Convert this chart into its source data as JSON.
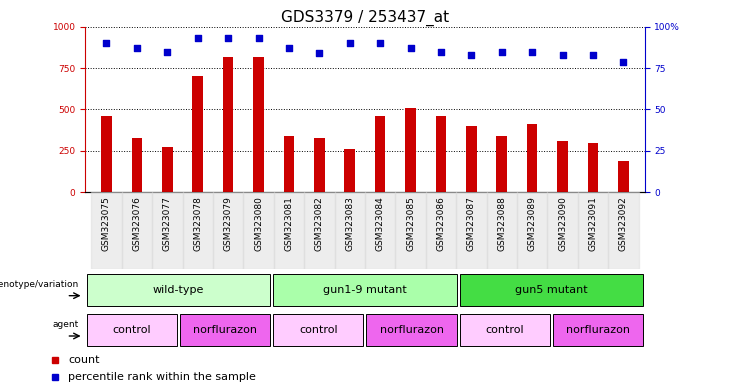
{
  "title": "GDS3379 / 253437_at",
  "samples": [
    "GSM323075",
    "GSM323076",
    "GSM323077",
    "GSM323078",
    "GSM323079",
    "GSM323080",
    "GSM323081",
    "GSM323082",
    "GSM323083",
    "GSM323084",
    "GSM323085",
    "GSM323086",
    "GSM323087",
    "GSM323088",
    "GSM323089",
    "GSM323090",
    "GSM323091",
    "GSM323092"
  ],
  "counts": [
    460,
    330,
    270,
    700,
    820,
    820,
    340,
    330,
    260,
    460,
    510,
    460,
    400,
    340,
    410,
    310,
    295,
    190
  ],
  "percentiles": [
    90,
    87,
    85,
    93,
    93,
    93,
    87,
    84,
    90,
    90,
    87,
    85,
    83,
    85,
    85,
    83,
    83,
    79
  ],
  "bar_color": "#CC0000",
  "dot_color": "#0000CC",
  "ylim_left": [
    0,
    1000
  ],
  "ylim_right": [
    0,
    100
  ],
  "yticks_left": [
    0,
    250,
    500,
    750,
    1000
  ],
  "yticks_right": [
    0,
    25,
    50,
    75,
    100
  ],
  "genotype_groups": [
    {
      "label": "wild-type",
      "start": 0,
      "end": 6,
      "color": "#ccffcc"
    },
    {
      "label": "gun1-9 mutant",
      "start": 6,
      "end": 12,
      "color": "#aaffaa"
    },
    {
      "label": "gun5 mutant",
      "start": 12,
      "end": 18,
      "color": "#44dd44"
    }
  ],
  "agent_groups": [
    {
      "label": "control",
      "start": 0,
      "end": 3,
      "color": "#ffccff"
    },
    {
      "label": "norflurazon",
      "start": 3,
      "end": 6,
      "color": "#ee66ee"
    },
    {
      "label": "control",
      "start": 6,
      "end": 9,
      "color": "#ffccff"
    },
    {
      "label": "norflurazon",
      "start": 9,
      "end": 12,
      "color": "#ee66ee"
    },
    {
      "label": "control",
      "start": 12,
      "end": 15,
      "color": "#ffccff"
    },
    {
      "label": "norflurazon",
      "start": 15,
      "end": 18,
      "color": "#ee66ee"
    }
  ],
  "left_axis_color": "#CC0000",
  "right_axis_color": "#0000CC",
  "background_color": "#ffffff",
  "title_fontsize": 11,
  "tick_fontsize": 6.5,
  "label_fontsize": 8,
  "annotation_fontsize": 8
}
